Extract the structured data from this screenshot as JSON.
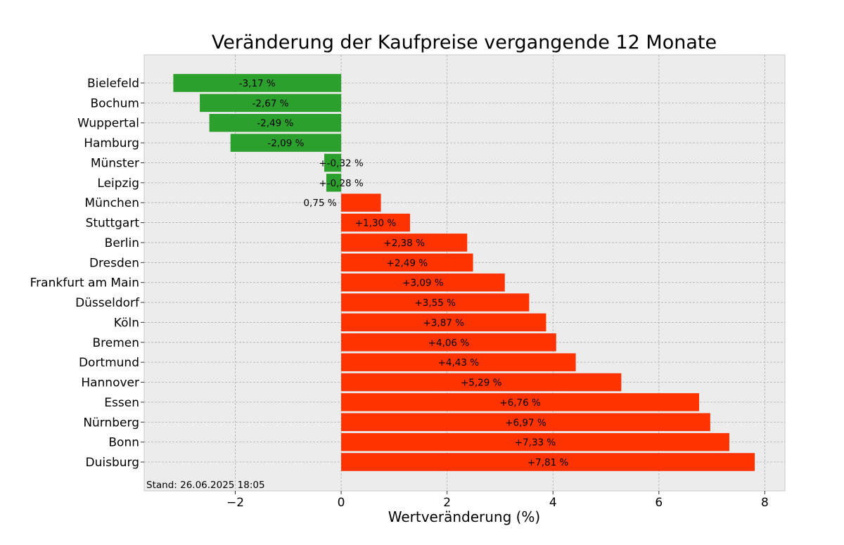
{
  "chart_data": {
    "type": "bar",
    "orientation": "horizontal",
    "title": "Veränderung der Kaufpreise vergangende 12 Monate",
    "xlabel": "Wertveränderung (%)",
    "ylabel": "",
    "xlim": [
      -3.72,
      8.38
    ],
    "xticks": [
      -2,
      0,
      2,
      4,
      6,
      8
    ],
    "xtick_labels": [
      "−2",
      "0",
      "2",
      "4",
      "6",
      "8"
    ],
    "grid": true,
    "colors": {
      "negative": "#2ca02c",
      "positive": "#ff3300",
      "background": "#ececec"
    },
    "categories": [
      "Bielefeld",
      "Bochum",
      "Wuppertal",
      "Hamburg",
      "Münster",
      "Leipzig",
      "München",
      "Stuttgart",
      "Berlin",
      "Dresden",
      "Frankfurt am Main",
      "Düsseldorf",
      "Köln",
      "Bremen",
      "Dortmund",
      "Hannover",
      "Essen",
      "Nürnberg",
      "Bonn",
      "Duisburg"
    ],
    "values": [
      -3.17,
      -2.67,
      -2.49,
      -2.09,
      -0.32,
      -0.28,
      0.75,
      1.3,
      2.38,
      2.49,
      3.09,
      3.55,
      3.87,
      4.06,
      4.43,
      5.29,
      6.76,
      6.97,
      7.33,
      7.81
    ],
    "data_labels": [
      "-3,17 %",
      "-2,67 %",
      "-2,49 %",
      "-2,09 %",
      "+-0,32 %",
      "+-0,28 %",
      "0,75 %",
      "+1,30 %",
      "+2,38 %",
      "+2,49 %",
      "+3,09 %",
      "+3,55 %",
      "+3,87 %",
      "+4,06 %",
      "+4,43 %",
      "+5,29 %",
      "+6,76 %",
      "+6,97 %",
      "+7,33 %",
      "+7,81 %"
    ],
    "annotation": "Stand: 26.06.2025 18:05"
  }
}
